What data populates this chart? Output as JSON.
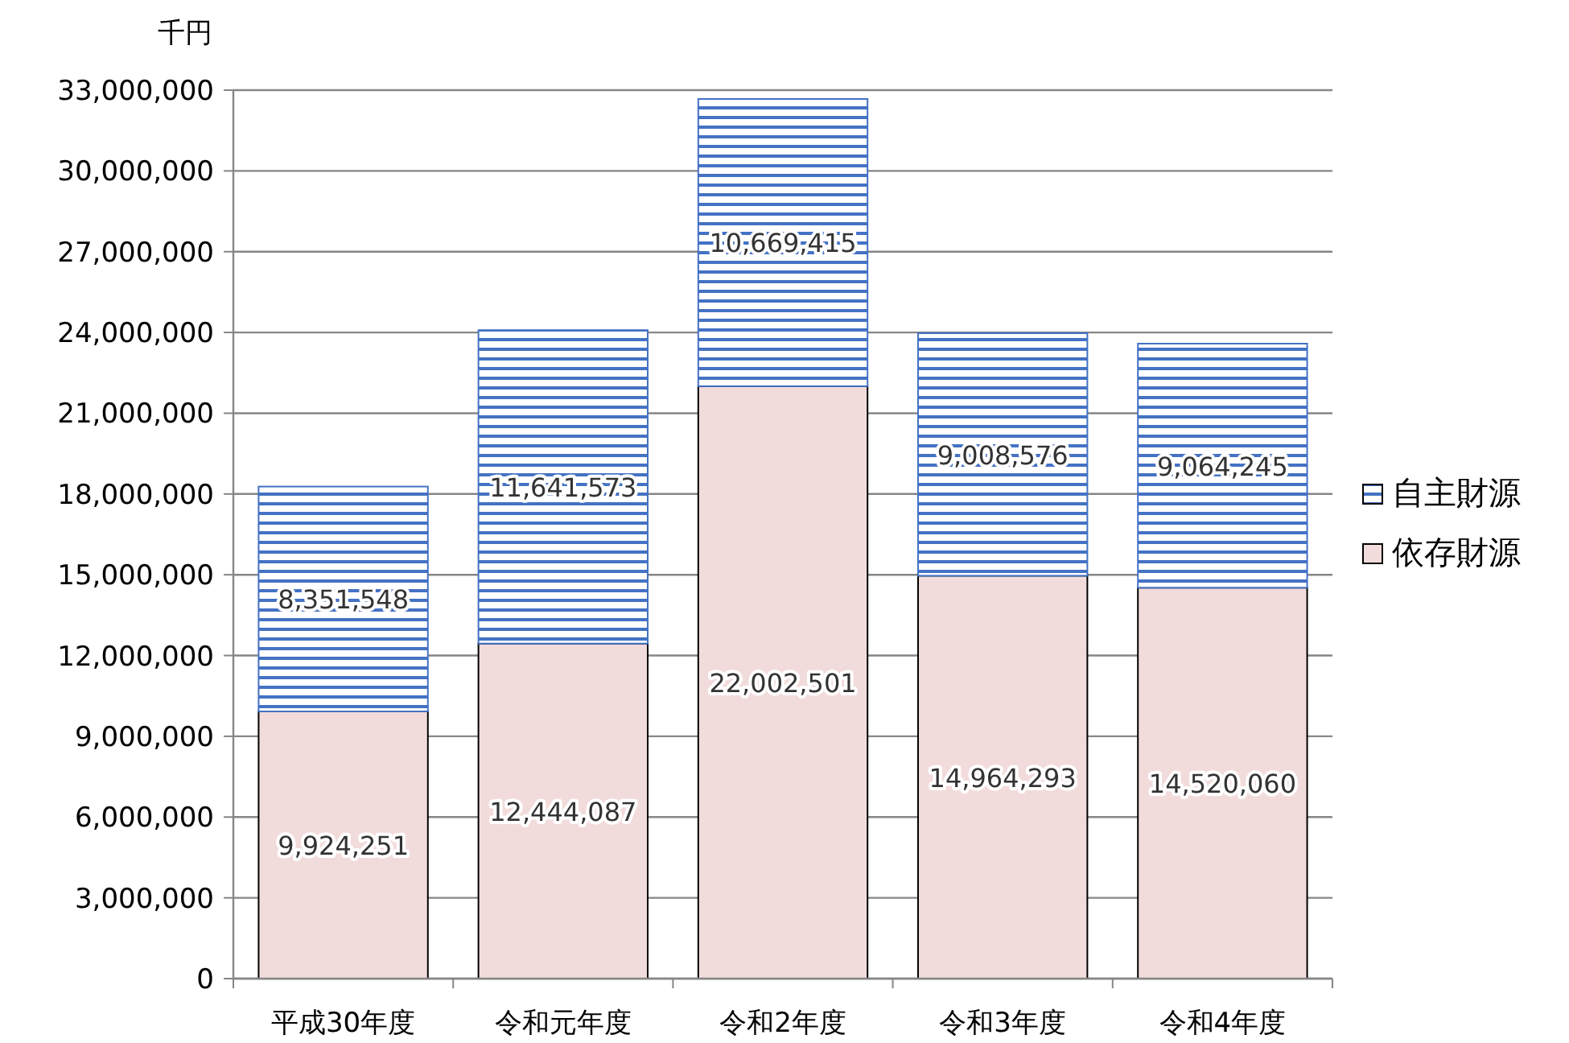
{
  "chart_data": {
    "type": "bar",
    "stacked": true,
    "ylabel": "千円",
    "categories": [
      "平成30年度",
      "令和元年度",
      "令和2年度",
      "令和3年度",
      "令和4年度"
    ],
    "series": [
      {
        "name": "依存財源",
        "color": "#f2dcdb",
        "values": [
          9924251,
          12444087,
          22002501,
          14964293,
          14520060
        ],
        "value_labels": [
          "9,924,251",
          "12,444,087",
          "22,002,501",
          "14,964,293",
          "14,520,060"
        ]
      },
      {
        "name": "自主財源",
        "color": "#4472c4",
        "values": [
          8351548,
          11641573,
          10669415,
          9008576,
          9064245
        ],
        "value_labels": [
          "8,351,548",
          "11,641,573",
          "10,669,415",
          "9,008,576",
          "9,064,245"
        ]
      }
    ],
    "ylim": [
      0,
      33000000
    ],
    "yticks": [
      {
        "value": 0,
        "label": "0"
      },
      {
        "value": 3000000,
        "label": "3,000,000"
      },
      {
        "value": 6000000,
        "label": "6,000,000"
      },
      {
        "value": 9000000,
        "label": "9,000,000"
      },
      {
        "value": 12000000,
        "label": "12,000,000"
      },
      {
        "value": 15000000,
        "label": "15,000,000"
      },
      {
        "value": 18000000,
        "label": "18,000,000"
      },
      {
        "value": 21000000,
        "label": "21,000,000"
      },
      {
        "value": 24000000,
        "label": "24,000,000"
      },
      {
        "value": 27000000,
        "label": "27,000,000"
      },
      {
        "value": 30000000,
        "label": "30,000,000"
      },
      {
        "value": 33000000,
        "label": "33,000,000"
      }
    ],
    "grid": "y",
    "legend": "right"
  }
}
